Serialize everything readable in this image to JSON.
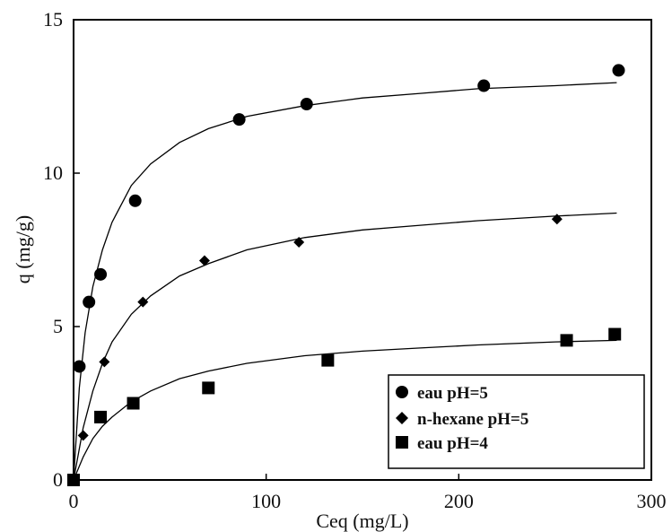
{
  "chart_data": {
    "type": "scatter",
    "title": "",
    "xlabel": "Ceq (mg/L)",
    "ylabel": "q (mg/g)",
    "xlim": [
      0,
      300
    ],
    "ylim": [
      0,
      15
    ],
    "x_ticks": [
      0,
      100,
      200,
      300
    ],
    "y_ticks": [
      0,
      5,
      10,
      15
    ],
    "x_tick_labels": [
      "0",
      "100",
      "200",
      "300"
    ],
    "y_tick_labels": [
      "0",
      "5",
      "10",
      "15"
    ],
    "grid": false,
    "legend_position": "bottom-right",
    "series": [
      {
        "name": "eau pH=5",
        "marker": "circle",
        "color": "#000000",
        "points": [
          [
            0,
            0
          ],
          [
            3,
            3.7
          ],
          [
            8,
            5.8
          ],
          [
            14,
            6.7
          ],
          [
            32,
            9.1
          ],
          [
            86,
            11.75
          ],
          [
            121,
            12.25
          ],
          [
            213,
            12.85
          ],
          [
            283,
            13.35
          ]
        ],
        "fit": [
          [
            0,
            0
          ],
          [
            3,
            3.0
          ],
          [
            6,
            4.8
          ],
          [
            10,
            6.3
          ],
          [
            15,
            7.5
          ],
          [
            20,
            8.4
          ],
          [
            30,
            9.6
          ],
          [
            40,
            10.3
          ],
          [
            55,
            11.0
          ],
          [
            70,
            11.45
          ],
          [
            90,
            11.85
          ],
          [
            120,
            12.2
          ],
          [
            150,
            12.45
          ],
          [
            180,
            12.6
          ],
          [
            210,
            12.75
          ],
          [
            250,
            12.85
          ],
          [
            282,
            12.95
          ]
        ]
      },
      {
        "name": "n-hexane pH=5",
        "marker": "diamond",
        "color": "#000000",
        "points": [
          [
            0,
            0
          ],
          [
            5,
            1.45
          ],
          [
            16,
            3.85
          ],
          [
            36,
            5.8
          ],
          [
            68,
            7.15
          ],
          [
            117,
            7.75
          ],
          [
            251,
            8.5
          ]
        ],
        "fit": [
          [
            0,
            0
          ],
          [
            5,
            1.7
          ],
          [
            10,
            2.9
          ],
          [
            15,
            3.8
          ],
          [
            20,
            4.5
          ],
          [
            30,
            5.4
          ],
          [
            40,
            6.0
          ],
          [
            55,
            6.65
          ],
          [
            70,
            7.05
          ],
          [
            90,
            7.5
          ],
          [
            120,
            7.9
          ],
          [
            150,
            8.15
          ],
          [
            180,
            8.3
          ],
          [
            210,
            8.45
          ],
          [
            250,
            8.6
          ],
          [
            282,
            8.7
          ]
        ]
      },
      {
        "name": "eau pH=4",
        "marker": "square",
        "color": "#000000",
        "points": [
          [
            0,
            0
          ],
          [
            14,
            2.05
          ],
          [
            31,
            2.5
          ],
          [
            70,
            3.0
          ],
          [
            132,
            3.9
          ],
          [
            256,
            4.55
          ],
          [
            281,
            4.75
          ]
        ],
        "fit": [
          [
            0,
            0
          ],
          [
            5,
            0.75
          ],
          [
            10,
            1.35
          ],
          [
            15,
            1.75
          ],
          [
            20,
            2.05
          ],
          [
            30,
            2.55
          ],
          [
            40,
            2.9
          ],
          [
            55,
            3.3
          ],
          [
            70,
            3.55
          ],
          [
            90,
            3.8
          ],
          [
            120,
            4.05
          ],
          [
            150,
            4.2
          ],
          [
            180,
            4.3
          ],
          [
            210,
            4.4
          ],
          [
            250,
            4.5
          ],
          [
            282,
            4.55
          ]
        ]
      }
    ]
  }
}
